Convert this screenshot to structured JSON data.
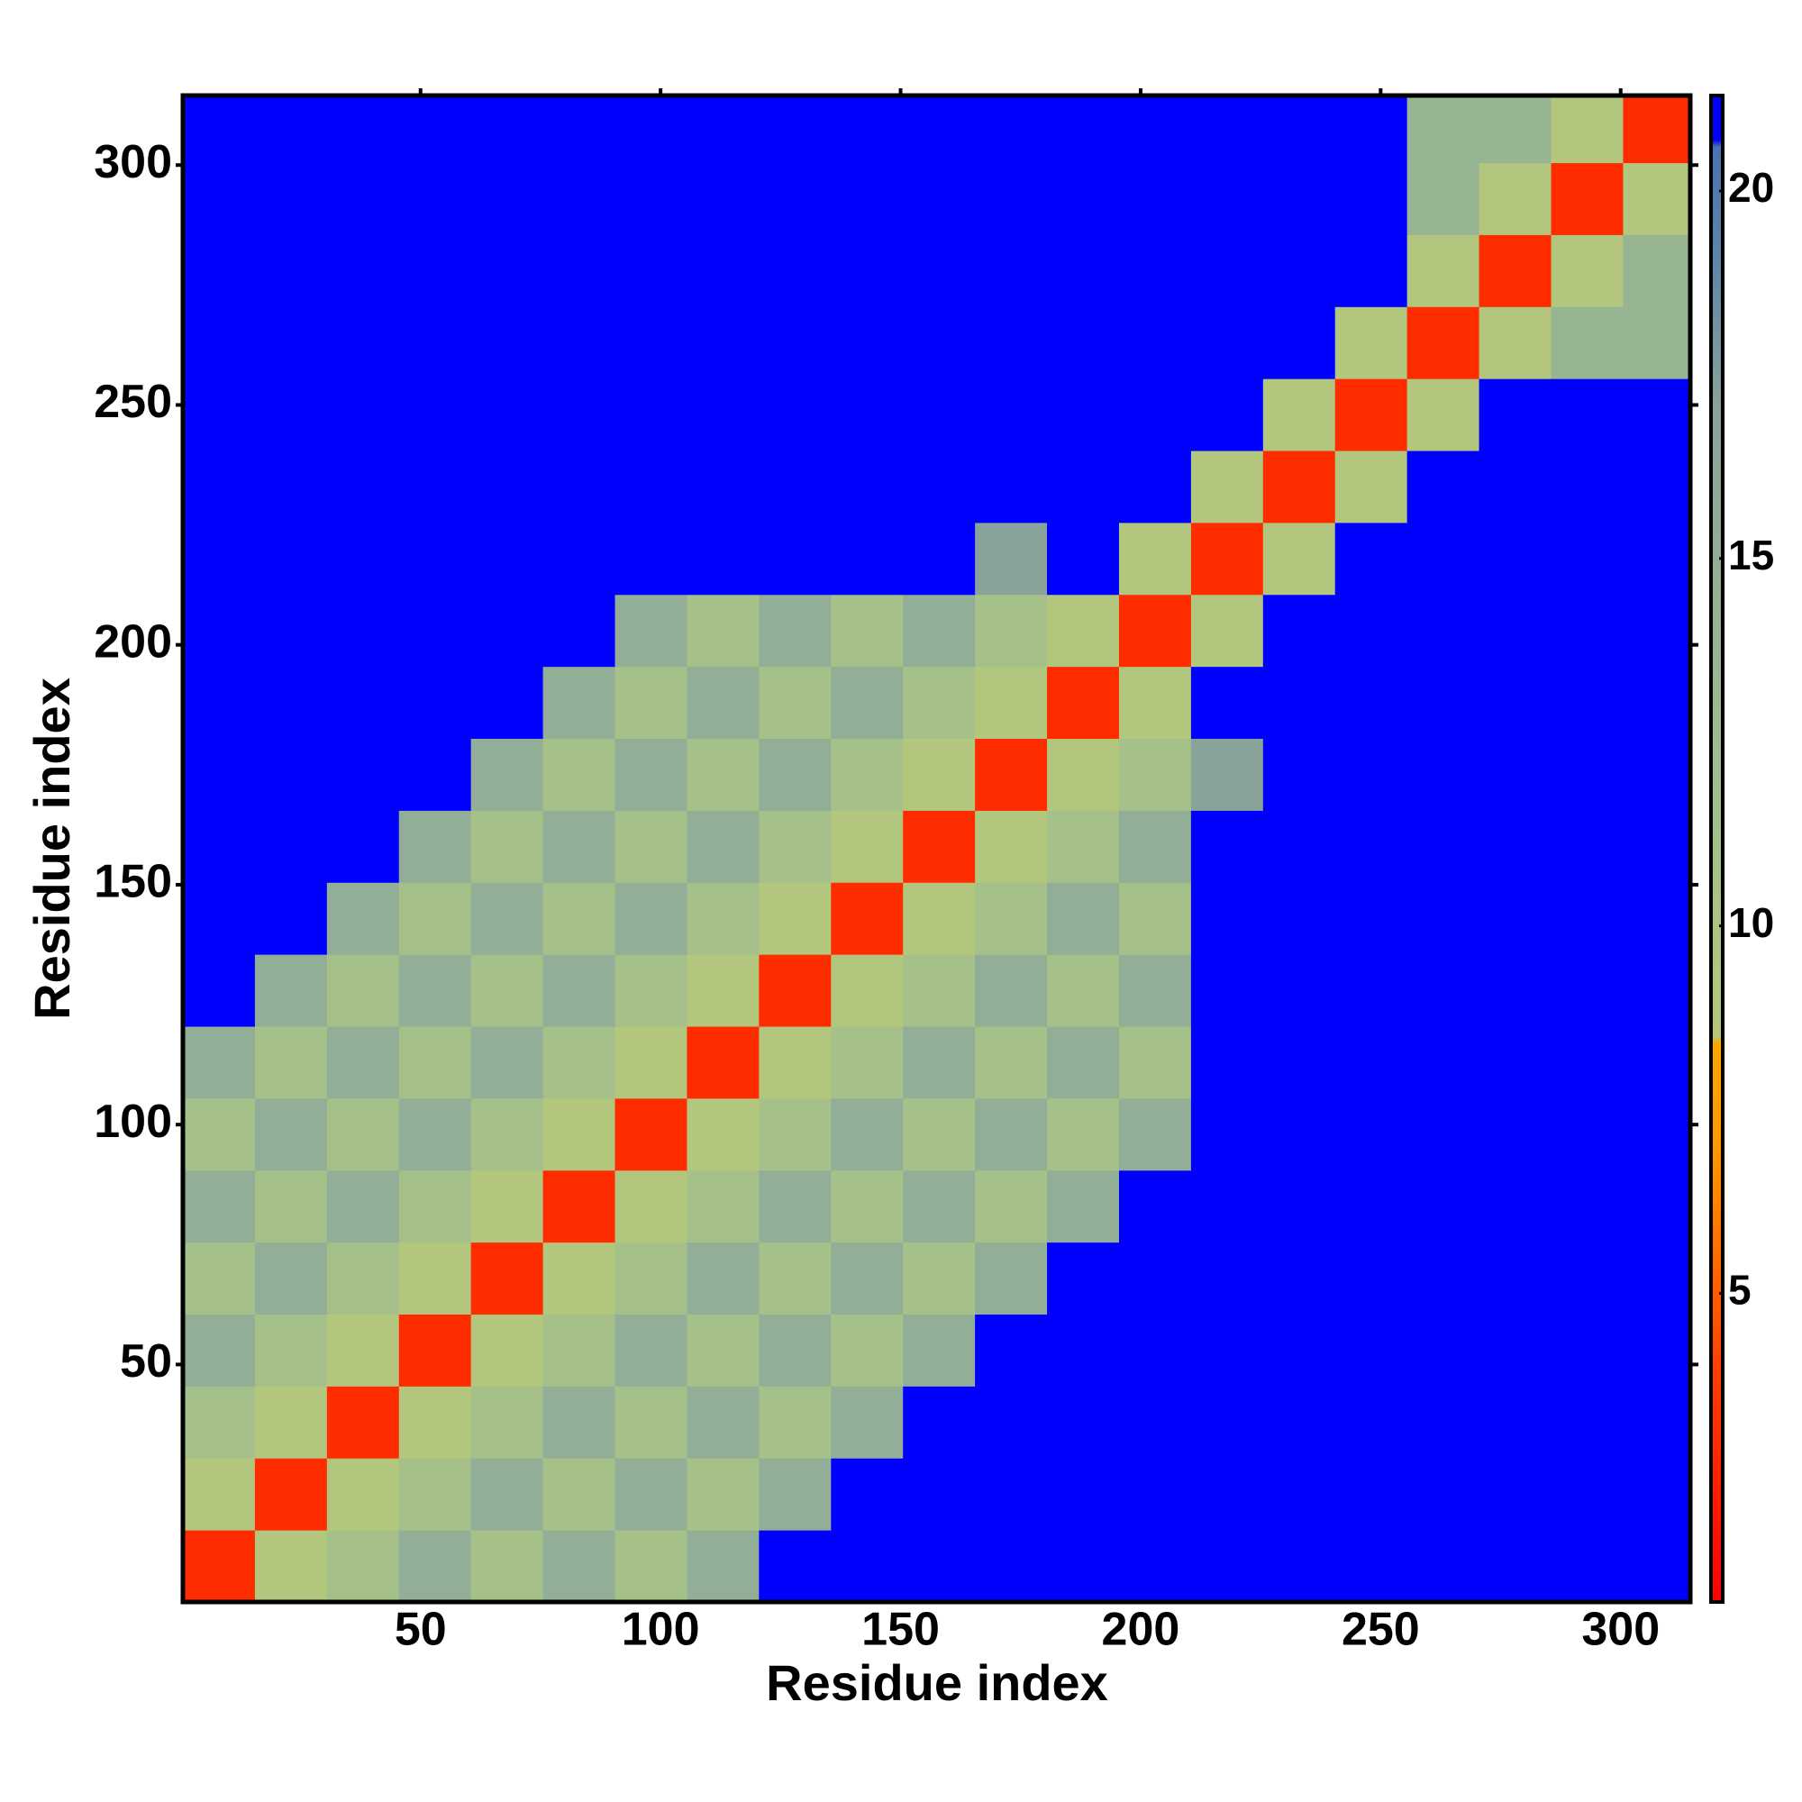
{
  "chart_data": {
    "type": "heatmap",
    "x_label": "Residue index",
    "y_label": "Residue index",
    "bins": [
      0.5,
      15.5,
      30.5,
      45.5,
      60.5,
      75.5,
      90.5,
      105.5,
      120.5,
      135.5,
      150.5,
      165.5,
      180.5,
      195.5,
      210.5,
      225.5,
      240.5,
      255.5,
      270.5,
      285.5,
      300.5,
      314.5
    ],
    "xlim": [
      0.5,
      314.5
    ],
    "ylim": [
      0.5,
      314.5
    ],
    "xticks": [
      50,
      100,
      150,
      200,
      250,
      300
    ],
    "yticks": [
      50,
      100,
      150,
      200,
      250,
      300
    ],
    "zlim": [
      0.8,
      21.3
    ],
    "zticks": [
      5,
      10,
      15,
      20
    ],
    "colorscale": [
      {
        "value": 0.8,
        "color": "#ff0000"
      },
      {
        "value": 4,
        "color": "#ff4000"
      },
      {
        "value": 7,
        "color": "#ff9900"
      },
      {
        "value": 8.4,
        "color": "#ffa500"
      },
      {
        "value": 8.5,
        "color": "#b5c77a"
      },
      {
        "value": 12,
        "color": "#9fbf8f"
      },
      {
        "value": 17,
        "color": "#8aa39a"
      },
      {
        "value": 19,
        "color": "#5f87a8"
      },
      {
        "value": 20.6,
        "color": "#4a72b0"
      },
      {
        "value": 20.7,
        "color": "#0000ff"
      },
      {
        "value": 21.3,
        "color": "#0000ff"
      }
    ],
    "z": [
      [
        3,
        9,
        11,
        15,
        11,
        15,
        11,
        15,
        21,
        21,
        21,
        21,
        21,
        21,
        21,
        21,
        21,
        21,
        21,
        21,
        21
      ],
      [
        9,
        3,
        9,
        11,
        15,
        11,
        15,
        11,
        15,
        21,
        21,
        21,
        21,
        21,
        21,
        21,
        21,
        21,
        21,
        21,
        21
      ],
      [
        11,
        9,
        3,
        9,
        11,
        15,
        11,
        15,
        11,
        15,
        21,
        21,
        21,
        21,
        21,
        21,
        21,
        21,
        21,
        21,
        21
      ],
      [
        15,
        11,
        9,
        3,
        9,
        11,
        15,
        11,
        15,
        11,
        15,
        21,
        21,
        21,
        21,
        21,
        21,
        21,
        21,
        21,
        21
      ],
      [
        11,
        15,
        11,
        9,
        3,
        9,
        11,
        15,
        11,
        15,
        11,
        15,
        21,
        21,
        21,
        21,
        21,
        21,
        21,
        21,
        21
      ],
      [
        15,
        11,
        15,
        11,
        9,
        3,
        9,
        11,
        15,
        11,
        15,
        11,
        15,
        21,
        21,
        21,
        21,
        21,
        21,
        21,
        21
      ],
      [
        11,
        15,
        11,
        15,
        11,
        9,
        3,
        9,
        11,
        15,
        11,
        15,
        11,
        15,
        21,
        21,
        21,
        21,
        21,
        21,
        21
      ],
      [
        15,
        11,
        15,
        11,
        15,
        11,
        9,
        3,
        9,
        11,
        15,
        11,
        15,
        11,
        21,
        21,
        21,
        21,
        21,
        21,
        21
      ],
      [
        21,
        15,
        11,
        15,
        11,
        15,
        11,
        9,
        3,
        9,
        11,
        15,
        11,
        15,
        21,
        21,
        21,
        21,
        21,
        21,
        21
      ],
      [
        21,
        21,
        15,
        11,
        15,
        11,
        15,
        11,
        9,
        3,
        9,
        11,
        15,
        11,
        21,
        21,
        21,
        21,
        21,
        21,
        21
      ],
      [
        21,
        21,
        21,
        15,
        11,
        15,
        11,
        15,
        11,
        9,
        3,
        9,
        11,
        15,
        21,
        21,
        21,
        21,
        21,
        21,
        21
      ],
      [
        21,
        21,
        21,
        21,
        15,
        11,
        15,
        11,
        15,
        11,
        9,
        3,
        9,
        11,
        17,
        21,
        21,
        21,
        21,
        21,
        21
      ],
      [
        21,
        21,
        21,
        21,
        21,
        15,
        11,
        15,
        11,
        15,
        11,
        9,
        3,
        9,
        21,
        21,
        21,
        21,
        21,
        21,
        21
      ],
      [
        21,
        21,
        21,
        21,
        21,
        21,
        15,
        11,
        15,
        11,
        15,
        11,
        9,
        3,
        9,
        21,
        21,
        21,
        21,
        21,
        21
      ],
      [
        21,
        21,
        21,
        21,
        21,
        21,
        21,
        21,
        21,
        21,
        21,
        17,
        21,
        9,
        3,
        9,
        21,
        21,
        21,
        21,
        21
      ],
      [
        21,
        21,
        21,
        21,
        21,
        21,
        21,
        21,
        21,
        21,
        21,
        21,
        21,
        21,
        9,
        3,
        9,
        21,
        21,
        21,
        21
      ],
      [
        21,
        21,
        21,
        21,
        21,
        21,
        21,
        21,
        21,
        21,
        21,
        21,
        21,
        21,
        21,
        9,
        3,
        9,
        21,
        21,
        21
      ],
      [
        21,
        21,
        21,
        21,
        21,
        21,
        21,
        21,
        21,
        21,
        21,
        21,
        21,
        21,
        21,
        21,
        9,
        3,
        9,
        14,
        14
      ],
      [
        21,
        21,
        21,
        21,
        21,
        21,
        21,
        21,
        21,
        21,
        21,
        21,
        21,
        21,
        21,
        21,
        21,
        9,
        3,
        9,
        14
      ],
      [
        21,
        21,
        21,
        21,
        21,
        21,
        21,
        21,
        21,
        21,
        21,
        21,
        21,
        21,
        21,
        21,
        21,
        14,
        9,
        3,
        9
      ],
      [
        21,
        21,
        21,
        21,
        21,
        21,
        21,
        21,
        21,
        21,
        21,
        21,
        21,
        21,
        21,
        21,
        21,
        14,
        14,
        9,
        3
      ]
    ]
  }
}
